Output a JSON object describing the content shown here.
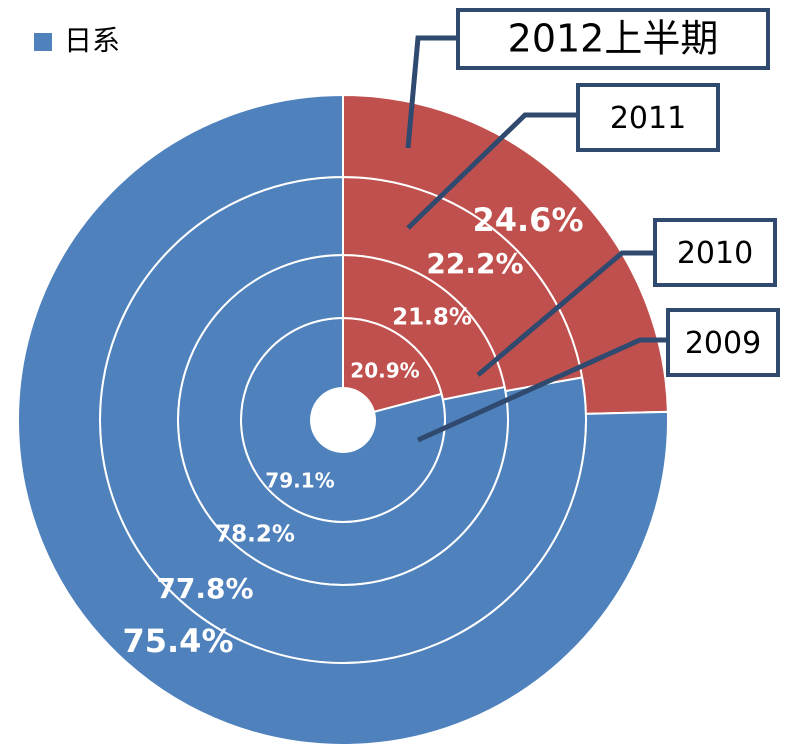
{
  "chart_data": {
    "type": "donut",
    "categories": [
      "2009",
      "2010",
      "2011",
      "2012上半期"
    ],
    "series": [
      {
        "color": "#c0504d",
        "values": [
          20.9,
          21.8,
          22.2,
          24.6
        ],
        "value_labels": [
          "20.9%",
          "21.8%",
          "22.2%",
          "24.6%"
        ]
      },
      {
        "name": "日系",
        "color": "#4f81bd",
        "values": [
          79.1,
          78.2,
          77.8,
          75.4
        ],
        "value_labels": [
          "79.1%",
          "78.2%",
          "77.8%",
          "75.4%"
        ]
      }
    ]
  }
}
